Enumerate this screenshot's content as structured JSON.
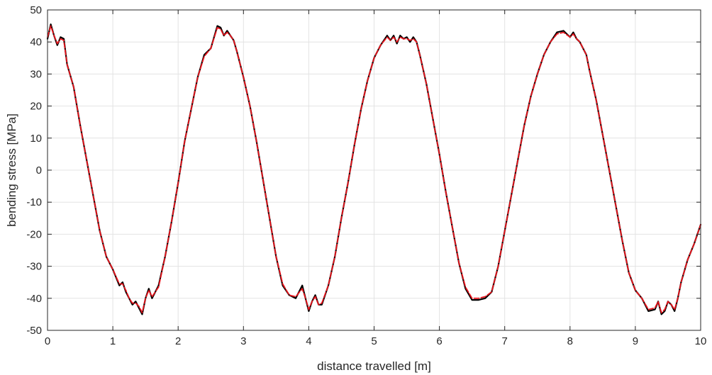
{
  "chart_data": {
    "type": "line",
    "title": "",
    "xlabel": "distance travelled [m]",
    "ylabel": "bending stress [MPa]",
    "xlim": [
      0,
      10
    ],
    "ylim": [
      -50,
      50
    ],
    "xticks": [
      0,
      1,
      2,
      3,
      4,
      5,
      6,
      7,
      8,
      9,
      10
    ],
    "yticks": [
      -50,
      -40,
      -30,
      -20,
      -10,
      0,
      10,
      20,
      30,
      40,
      50
    ],
    "grid": true,
    "legend": "none",
    "series": [
      {
        "color": "#000000",
        "x": [
          0,
          0.05,
          0.1,
          0.15,
          0.2,
          0.25,
          0.3,
          0.35,
          0.4,
          0.5,
          0.6,
          0.7,
          0.8,
          0.9,
          1.0,
          1.1,
          1.15,
          1.2,
          1.25,
          1.3,
          1.35,
          1.4,
          1.45,
          1.5,
          1.55,
          1.6,
          1.65,
          1.7,
          1.8,
          1.9,
          2.0,
          2.1,
          2.2,
          2.3,
          2.4,
          2.5,
          2.6,
          2.65,
          2.7,
          2.75,
          2.8,
          2.85,
          2.9,
          3.0,
          3.1,
          3.2,
          3.3,
          3.4,
          3.5,
          3.6,
          3.7,
          3.8,
          3.9,
          3.95,
          4.0,
          4.05,
          4.1,
          4.15,
          4.2,
          4.3,
          4.4,
          4.5,
          4.6,
          4.7,
          4.8,
          4.9,
          5.0,
          5.1,
          5.2,
          5.25,
          5.3,
          5.35,
          5.4,
          5.45,
          5.5,
          5.55,
          5.6,
          5.65,
          5.7,
          5.8,
          5.9,
          6.0,
          6.1,
          6.2,
          6.3,
          6.4,
          6.5,
          6.6,
          6.7,
          6.8,
          6.9,
          7.0,
          7.1,
          7.2,
          7.3,
          7.4,
          7.5,
          7.6,
          7.7,
          7.8,
          7.9,
          8.0,
          8.05,
          8.1,
          8.15,
          8.2,
          8.25,
          8.3,
          8.4,
          8.5,
          8.6,
          8.7,
          8.8,
          8.9,
          9.0,
          9.1,
          9.2,
          9.3,
          9.35,
          9.4,
          9.45,
          9.5,
          9.55,
          9.6,
          9.65,
          9.7,
          9.8,
          9.9,
          10.0
        ],
        "y": [
          41,
          45.5,
          42,
          39,
          41.5,
          41,
          33,
          29.5,
          26,
          14,
          3,
          -8,
          -19,
          -27,
          -31,
          -36,
          -35,
          -38,
          -40,
          -42,
          -41,
          -43,
          -45,
          -40,
          -37,
          -40,
          -38,
          -36,
          -27,
          -16,
          -4,
          9,
          19,
          29,
          36,
          38,
          45,
          44.5,
          42,
          43.5,
          42,
          40.5,
          37,
          29,
          20,
          9,
          -3,
          -15,
          -27,
          -36,
          -39,
          -40,
          -36,
          -40,
          -44,
          -41,
          -39,
          -42,
          -42,
          -36,
          -27,
          -15,
          -4,
          8,
          19,
          28,
          35,
          39,
          42,
          40.5,
          42,
          39.5,
          42,
          41,
          41.5,
          40,
          41.5,
          40,
          36,
          27,
          16,
          5,
          -7,
          -18,
          -29,
          -37,
          -40.5,
          -40.5,
          -40,
          -38,
          -30,
          -19,
          -8,
          3,
          14,
          23,
          30,
          36,
          40,
          43,
          43.5,
          41.5,
          43,
          41,
          40,
          38,
          36,
          31,
          22,
          11,
          0,
          -11,
          -22,
          -32,
          -37.5,
          -40,
          -44,
          -43.5,
          -41,
          -45,
          -44,
          -41,
          -42,
          -44,
          -40,
          -35,
          -28,
          -23,
          -17
        ]
      },
      {
        "color": "#e8141c",
        "dashed": true,
        "x": [
          0,
          0.05,
          0.1,
          0.15,
          0.2,
          0.25,
          0.3,
          0.35,
          0.4,
          0.5,
          0.6,
          0.7,
          0.8,
          0.9,
          1.0,
          1.1,
          1.15,
          1.2,
          1.25,
          1.3,
          1.35,
          1.4,
          1.45,
          1.5,
          1.55,
          1.6,
          1.65,
          1.7,
          1.8,
          1.9,
          2.0,
          2.1,
          2.2,
          2.3,
          2.4,
          2.5,
          2.6,
          2.65,
          2.7,
          2.75,
          2.8,
          2.85,
          2.9,
          3.0,
          3.1,
          3.2,
          3.3,
          3.4,
          3.5,
          3.6,
          3.7,
          3.8,
          3.9,
          3.95,
          4.0,
          4.05,
          4.1,
          4.15,
          4.2,
          4.3,
          4.4,
          4.5,
          4.6,
          4.7,
          4.8,
          4.9,
          5.0,
          5.1,
          5.2,
          5.25,
          5.3,
          5.35,
          5.4,
          5.45,
          5.5,
          5.55,
          5.6,
          5.65,
          5.7,
          5.8,
          5.9,
          6.0,
          6.1,
          6.2,
          6.3,
          6.4,
          6.5,
          6.6,
          6.7,
          6.8,
          6.9,
          7.0,
          7.1,
          7.2,
          7.3,
          7.4,
          7.5,
          7.6,
          7.7,
          7.8,
          7.9,
          8.0,
          8.05,
          8.1,
          8.15,
          8.2,
          8.25,
          8.3,
          8.4,
          8.5,
          8.6,
          8.7,
          8.8,
          8.9,
          9.0,
          9.1,
          9.2,
          9.3,
          9.35,
          9.4,
          9.45,
          9.5,
          9.55,
          9.6,
          9.65,
          9.7,
          9.8,
          9.9,
          10.0
        ],
        "y": [
          41.5,
          45,
          42,
          39.5,
          41,
          40.5,
          33,
          29.5,
          26,
          14,
          3,
          -8,
          -19,
          -27,
          -31,
          -35.5,
          -35.5,
          -37.5,
          -40,
          -41.5,
          -41.5,
          -42.5,
          -44.5,
          -40,
          -37.5,
          -39.5,
          -38,
          -36.5,
          -27,
          -16,
          -4,
          9,
          19,
          29,
          35.5,
          38,
          44.5,
          44,
          42,
          43,
          42,
          40.5,
          37,
          29,
          20,
          9,
          -3,
          -15,
          -27,
          -35.5,
          -39,
          -39.5,
          -37,
          -40,
          -43.5,
          -41,
          -39.5,
          -42,
          -41.5,
          -36,
          -27,
          -15,
          -4,
          8,
          19,
          28,
          35,
          39,
          41.5,
          40.5,
          41.5,
          40,
          41.5,
          41,
          41,
          40.5,
          41,
          40,
          36,
          27,
          16,
          5,
          -7,
          -18,
          -29,
          -36.5,
          -40,
          -40,
          -39.5,
          -38,
          -30,
          -19,
          -8,
          3,
          14,
          23,
          30,
          36,
          40,
          42.5,
          43,
          41.5,
          42.5,
          41,
          40,
          38,
          36,
          31,
          22,
          11,
          0,
          -11,
          -22,
          -32,
          -37.5,
          -40,
          -43.5,
          -43,
          -41,
          -44.5,
          -43.5,
          -41,
          -42,
          -43.5,
          -40,
          -35,
          -28,
          -23,
          -17
        ]
      }
    ]
  }
}
